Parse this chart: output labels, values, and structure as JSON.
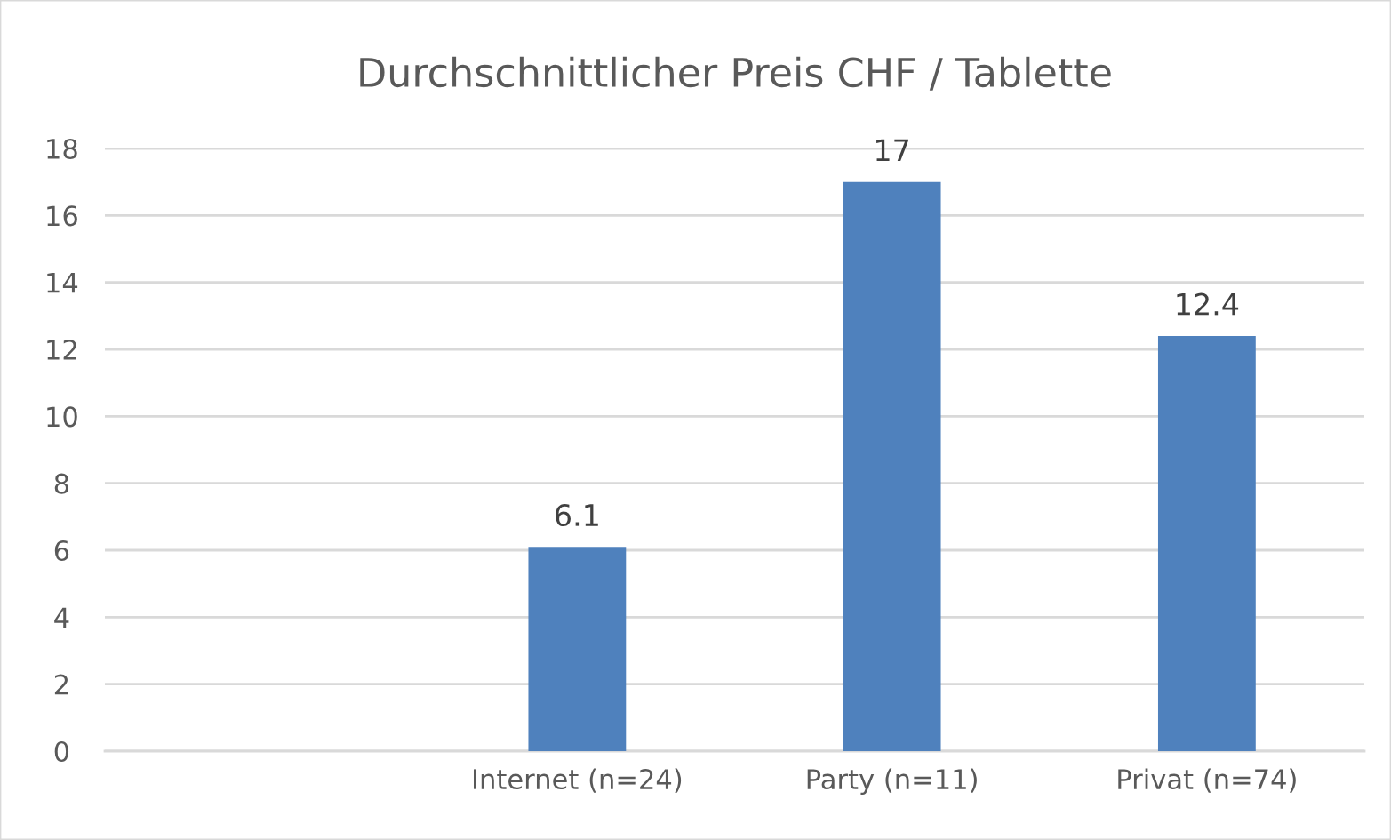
{
  "chart_data": {
    "type": "bar",
    "title": "Durchschnittlicher Preis CHF / Tablette",
    "categories": [
      null,
      "Internet (n=24)",
      "Party (n=11)",
      "Privat (n=74)"
    ],
    "values": [
      null,
      6.1,
      17,
      12.4
    ],
    "color": "#4f81bd",
    "ylim": [
      0,
      18
    ],
    "yticks": [
      0,
      2,
      4,
      6,
      8,
      10,
      12,
      14,
      16,
      18
    ],
    "grid": "y",
    "data_labels": true,
    "legend": false
  }
}
